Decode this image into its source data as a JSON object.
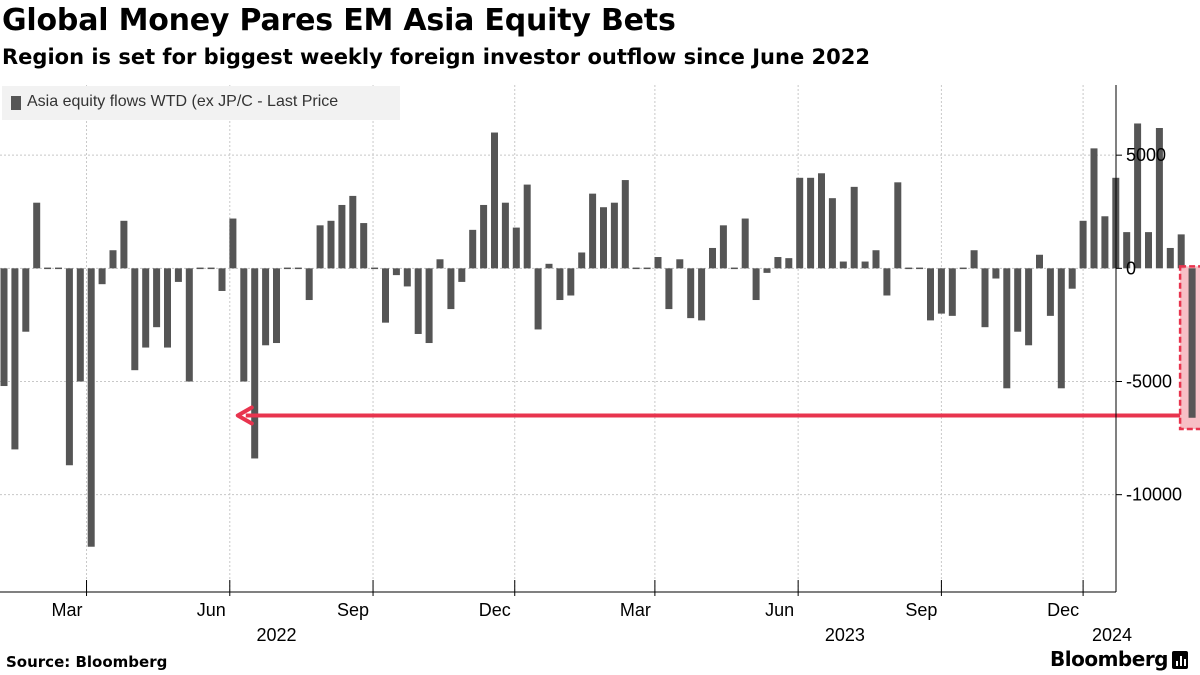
{
  "title": "Global Money Pares EM Asia Equity Bets",
  "subtitle": "Region is set for biggest weekly foreign investor outflow since June 2022",
  "source": "Source: Bloomberg",
  "brand": "Bloomberg",
  "colors": {
    "bar": "#555555",
    "highlight": "#e8344e",
    "highlight_fill": "#f4a9b3",
    "grid": "#c8c8c8"
  },
  "chart_data": {
    "type": "bar",
    "legend": {
      "label": "Asia equity flows WTD (ex JP/C - Last Price",
      "position": "top-left"
    },
    "x_start_week": "2022-01-07",
    "x_ticks": [
      {
        "label": "Mar",
        "date": "2022-03-01"
      },
      {
        "label": "Jun",
        "date": "2022-06-01"
      },
      {
        "label": "Sep",
        "date": "2022-09-01"
      },
      {
        "label": "Dec",
        "date": "2022-12-01"
      },
      {
        "label": "Mar",
        "date": "2023-03-01"
      },
      {
        "label": "Jun",
        "date": "2023-06-01"
      },
      {
        "label": "Sep",
        "date": "2023-09-01"
      },
      {
        "label": "Dec",
        "date": "2023-12-01"
      }
    ],
    "year_labels": [
      {
        "label": "2022",
        "date": "2022-07-01"
      },
      {
        "label": "2023",
        "date": "2023-07-01"
      },
      {
        "label": "2024",
        "date": "2024-01-12"
      }
    ],
    "y_ticks": [
      5000,
      0,
      -5000,
      -10000
    ],
    "y_tick_labels": [
      "5000",
      "0",
      "-5000",
      "-10000"
    ],
    "ylim": [
      -14300,
      8100
    ],
    "y_axis_position": "right",
    "grid": true,
    "values": [
      -5200,
      -8000,
      -2800,
      2900,
      50,
      -50,
      -8700,
      -5000,
      -12300,
      -700,
      800,
      2100,
      -4500,
      -3500,
      -2600,
      -3500,
      -600,
      -5000,
      50,
      50,
      -1000,
      2200,
      -5000,
      -8400,
      -3400,
      -3300,
      50,
      50,
      -1400,
      1900,
      2100,
      2800,
      3200,
      2000,
      -50,
      -2400,
      -300,
      -800,
      -2900,
      -3300,
      400,
      -1800,
      -600,
      1700,
      2800,
      6000,
      2900,
      1800,
      3700,
      -2700,
      200,
      -1400,
      -1200,
      700,
      3300,
      2700,
      2900,
      3900,
      -50,
      50,
      500,
      -1800,
      400,
      -2200,
      -2300,
      900,
      1900,
      -50,
      2200,
      -1400,
      -200,
      500,
      450,
      4000,
      4000,
      4200,
      3100,
      300,
      3600,
      300,
      800,
      -1200,
      3800,
      -50,
      50,
      -2300,
      -2000,
      -2100,
      50,
      800,
      -2600,
      -450,
      -5300,
      -2800,
      -3400,
      600,
      -2100,
      -5300,
      -900,
      2100,
      5300,
      2300,
      4000,
      1600,
      6400,
      1600,
      6200,
      900,
      1500,
      -6600
    ],
    "highlight": {
      "index": 109,
      "value": -6600
    },
    "annotation": {
      "type": "arrow",
      "from_week": "2024-01-12",
      "to_date": "2022-06-01",
      "value": -6500
    }
  }
}
